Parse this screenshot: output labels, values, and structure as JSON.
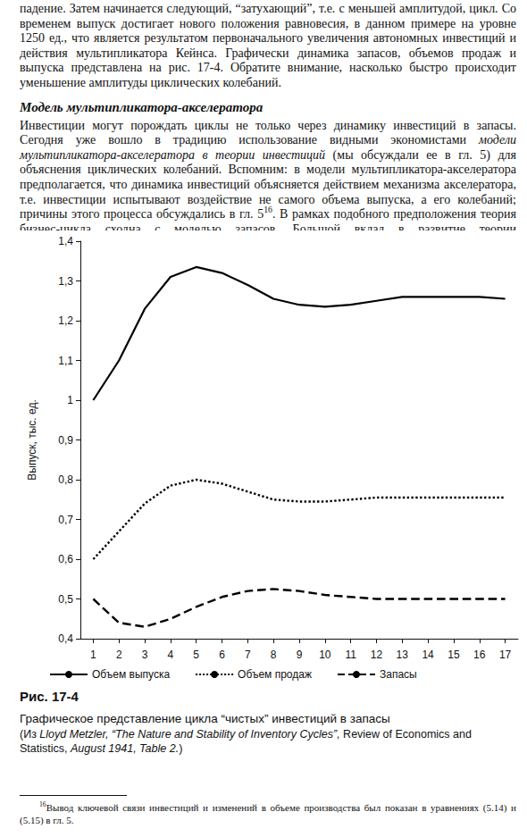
{
  "body": [
    {
      "kind": "paragraph",
      "runs": [
        {
          "text": "падение. Затем начинается следующий, “затухающий”, т.е. с меньшей амплитудой, цикл. Со временем выпуск достигает нового положения равновесия, в данном примере на уровне 1250 ед., что является результатом первоначального увеличения автономных инвестиций и действия мультипликатора Кейнса. Графически динамика запасов, объемов продаж и выпуска представлена на рис. 17-4. Обратите внимание, насколько быстро происходит уменьшение амплитуды циклических колебаний."
        }
      ]
    },
    {
      "kind": "heading",
      "text": "Модель мультипликатора-акселератора"
    },
    {
      "kind": "paragraph",
      "runs": [
        {
          "text": "Инвестиции могут порождать циклы не только через динамику инвестиций в запасы. Сегодня уже вошло в традицию использование видными экономистами "
        },
        {
          "text": "модели мультипликатора-акселератора в теории инвестиций",
          "style": "italic"
        },
        {
          "text": " (мы обсуждали ее в гл. 5) для объяснения циклических колебаний. Вспомним: в модели мультипликатора-акселератора предполагается, что динамика инвестиций объясняется действием механизма акселератора, т.е. инвестиции испытывают воздействие не самого объема выпуска, а его колебаний; причины этого процесса обсуждались в гл. 5"
        },
        {
          "text": "16",
          "style": "sup"
        },
        {
          "text": ". В рамках подобного предположения теория бизнес-цикла сходна с моделью запасов. Большой вклад в развитие теории мультипликатора-акселератора применительно к"
        }
      ]
    }
  ],
  "chart_data": {
    "type": "line",
    "y_label": "Выпуск, тыс. ед.",
    "categories": [
      "1",
      "2",
      "3",
      "4",
      "5",
      "6",
      "7",
      "8",
      "9",
      "10",
      "11",
      "12",
      "13",
      "14",
      "15",
      "16",
      "17"
    ],
    "series": [
      {
        "name": "Объем выпуска",
        "color": "#000000",
        "line_style": "solid",
        "values": [
          1.0,
          1.1,
          1.23,
          1.31,
          1.335,
          1.32,
          1.29,
          1.255,
          1.24,
          1.235,
          1.24,
          1.25,
          1.26,
          1.26,
          1.26,
          1.26,
          1.255
        ]
      },
      {
        "name": "Объем продаж",
        "color": "#000000",
        "line_style": "dotted",
        "values": [
          0.6,
          0.67,
          0.74,
          0.785,
          0.8,
          0.79,
          0.77,
          0.75,
          0.745,
          0.745,
          0.75,
          0.755,
          0.755,
          0.755,
          0.755,
          0.755,
          0.755
        ]
      },
      {
        "name": "Запасы",
        "color": "#000000",
        "line_style": "dashed",
        "values": [
          0.5,
          0.44,
          0.43,
          0.45,
          0.48,
          0.505,
          0.52,
          0.525,
          0.52,
          0.51,
          0.505,
          0.5,
          0.5,
          0.5,
          0.5,
          0.5,
          0.5
        ]
      }
    ],
    "ylim": [
      0.4,
      1.4
    ],
    "yticks": [
      {
        "value": 0.4,
        "label": "0,4"
      },
      {
        "value": 0.5,
        "label": "0,5"
      },
      {
        "value": 0.6,
        "label": "0,6"
      },
      {
        "value": 0.7,
        "label": "0,7"
      },
      {
        "value": 0.8,
        "label": "0,8"
      },
      {
        "value": 0.9,
        "label": "0,9"
      },
      1,
      {
        "value": 1.1,
        "label": "1,1"
      },
      {
        "value": 1.2,
        "label": "1,2"
      },
      {
        "value": 1.3,
        "label": "1,3"
      },
      {
        "value": 1.4,
        "label": "1,4"
      }
    ],
    "grid": false,
    "legend": "bottom"
  },
  "caption": {
    "label": "Рис. 17-4",
    "title": "Графическое представление цикла “чистых” инвестиций в запасы",
    "source": [
      {
        "text": "(Из "
      },
      {
        "text": "Lloyd Metzler, “The Nature and Stability of Inventory Cycles”,",
        "style": "italic"
      },
      {
        "text": " Review of Economics and Statistics, "
      },
      {
        "text": "August 1941, Table 2.",
        "style": "italic"
      },
      {
        "text": ")"
      }
    ]
  },
  "footnote": {
    "mark": "16",
    "text": "Вывод ключевой связи инвестиций и изменений в объеме производства был показан в уравнениях (5.14) и (5.15) в гл. 5."
  }
}
